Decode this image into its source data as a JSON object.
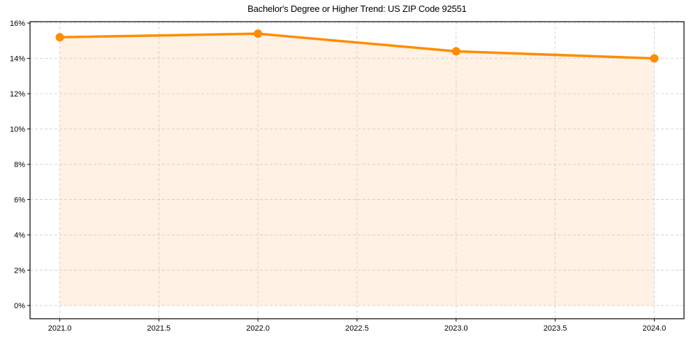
{
  "chart_data": {
    "type": "line",
    "title": "Bachelor's Degree or Higher Trend: US ZIP Code 92551",
    "xlabel": "",
    "ylabel": "",
    "x": [
      2021,
      2022,
      2023,
      2024
    ],
    "series": [
      {
        "name": "Bachelor's Degree or Higher",
        "values": [
          15.2,
          15.4,
          14.4,
          14.0
        ],
        "color": "#ff8c00",
        "fill_color": "#fff1e3",
        "marker": "circle"
      }
    ],
    "xlim": [
      2020.85,
      2024.15
    ],
    "ylim": [
      -0.75,
      16.08
    ],
    "xticks": [
      2021.0,
      2021.5,
      2022.0,
      2022.5,
      2023.0,
      2023.5,
      2024.0
    ],
    "xtick_labels": [
      "2021.0",
      "2021.5",
      "2022.0",
      "2022.5",
      "2023.0",
      "2023.5",
      "2024.0"
    ],
    "yticks": [
      0,
      2,
      4,
      6,
      8,
      10,
      12,
      14,
      16
    ],
    "ytick_labels": [
      "0%",
      "2%",
      "4%",
      "6%",
      "8%",
      "10%",
      "12%",
      "14%",
      "16%"
    ],
    "grid": true,
    "grid_style": "dashed",
    "legend": null
  }
}
